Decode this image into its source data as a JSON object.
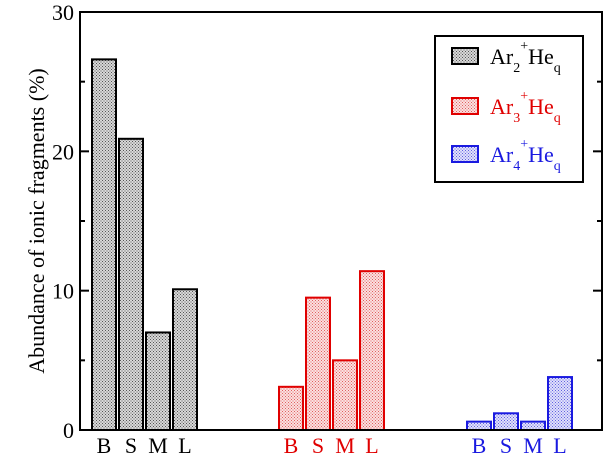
{
  "chart_data": {
    "type": "bar",
    "ylabel": "Abundance of ionic fragments (%)",
    "ylim": [
      0,
      30
    ],
    "yticks": [
      0,
      10,
      20,
      30
    ],
    "grid": false,
    "legend_position": "top-right",
    "categories": [
      "B",
      "S",
      "M",
      "L"
    ],
    "series": [
      {
        "name": "Ar2+Heq",
        "legend": {
          "base1": "Ar",
          "sub1": "2",
          "sup1": "+",
          "base2": "He",
          "sub2": "q"
        },
        "color": "#000000",
        "fill": "#b4b4b4",
        "values": [
          26.6,
          20.9,
          7.0,
          10.1
        ]
      },
      {
        "name": "Ar3+Heq",
        "legend": {
          "base1": "Ar",
          "sub1": "3",
          "sup1": "+",
          "base2": "He",
          "sub2": "q"
        },
        "color": "#e00000",
        "fill": "#f4b8b8",
        "values": [
          3.1,
          9.5,
          5.0,
          11.4
        ]
      },
      {
        "name": "Ar4+Heq",
        "legend": {
          "base1": "Ar",
          "sub1": "4",
          "sup1": "+",
          "base2": "He",
          "sub2": "q"
        },
        "color": "#1a1ae0",
        "fill": "#b8b8f4",
        "values": [
          0.6,
          1.2,
          0.6,
          3.8
        ]
      }
    ]
  }
}
